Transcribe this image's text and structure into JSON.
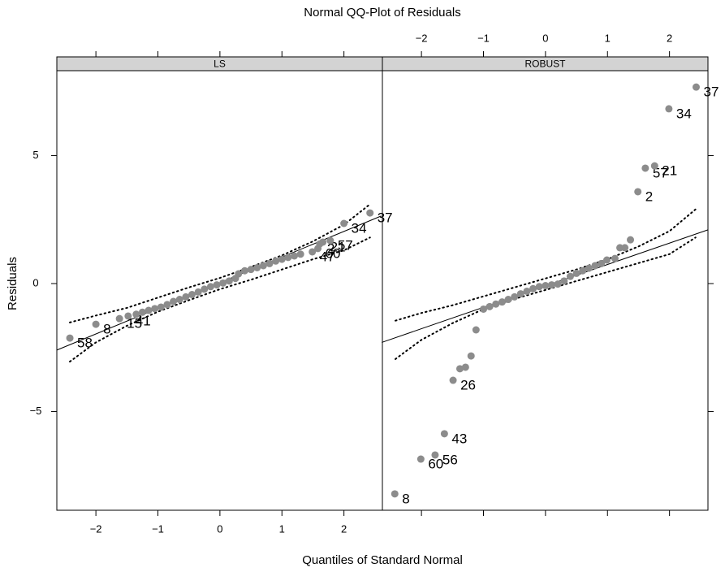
{
  "chart_data": {
    "type": "scatter",
    "title": "Normal QQ-Plot of Residuals",
    "xlabel": "Quantiles of Standard Normal",
    "ylabel": "Residuals",
    "xlim": [
      -2.63,
      2.62
    ],
    "ylim": [
      -8.86,
      8.32
    ],
    "xticks": [
      {
        "value": -2,
        "label": "−2"
      },
      {
        "value": -1,
        "label": "−1"
      },
      0,
      1,
      2
    ],
    "yticks": [
      {
        "value": -5,
        "label": "−5"
      },
      0,
      5
    ],
    "point_color": "#8c8c8c",
    "strip_color": "#d3d3d3",
    "panels": [
      {
        "name": "LS",
        "x": [
          -2.42,
          -2.0,
          -1.62,
          -1.48,
          -1.35,
          -1.25,
          -1.15,
          -1.05,
          -0.95,
          -0.85,
          -0.75,
          -0.65,
          -0.55,
          -0.45,
          -0.35,
          -0.25,
          -0.15,
          -0.05,
          0.05,
          0.15,
          0.25,
          0.3,
          0.4,
          0.5,
          0.6,
          0.7,
          0.8,
          0.9,
          1.0,
          1.1,
          1.2,
          1.3,
          1.49,
          1.58,
          1.61,
          1.66,
          1.78,
          2.0,
          2.42
        ],
        "values": [
          -2.13,
          -1.59,
          -1.37,
          -1.27,
          -1.2,
          -1.12,
          -1.05,
          -0.98,
          -0.92,
          -0.82,
          -0.7,
          -0.62,
          -0.52,
          -0.43,
          -0.33,
          -0.22,
          -0.12,
          -0.05,
          0.02,
          0.1,
          0.2,
          0.38,
          0.5,
          0.55,
          0.62,
          0.7,
          0.78,
          0.88,
          0.95,
          1.02,
          1.08,
          1.15,
          1.24,
          1.37,
          1.55,
          1.62,
          1.68,
          2.35,
          2.76
        ],
        "point_labels": [
          "58",
          "8",
          "15",
          "41",
          null,
          null,
          null,
          null,
          null,
          null,
          null,
          null,
          null,
          null,
          null,
          null,
          null,
          null,
          null,
          null,
          null,
          null,
          null,
          null,
          null,
          null,
          null,
          null,
          null,
          null,
          null,
          null,
          "47",
          "60",
          "2",
          "21",
          "57",
          "34",
          "37"
        ],
        "ref_x": [
          -2.63,
          2.6
        ],
        "ref_y": [
          -2.6,
          2.64
        ],
        "envelope_x": [
          -2.42,
          -2,
          -1.5,
          -1,
          -0.5,
          0,
          0.5,
          1,
          1.5,
          2,
          2.42
        ],
        "envelope_upper": [
          -1.52,
          -1.25,
          -0.95,
          -0.55,
          -0.15,
          0.22,
          0.65,
          1.1,
          1.65,
          2.3,
          3.1
        ],
        "envelope_lower": [
          -3.05,
          -2.3,
          -1.65,
          -1.1,
          -0.65,
          -0.22,
          0.15,
          0.55,
          0.95,
          1.3,
          1.8
        ]
      },
      {
        "name": "ROBUST",
        "x": [
          -2.43,
          -2.01,
          -1.78,
          -1.63,
          -1.49,
          -1.38,
          -1.29,
          -1.2,
          -1.12,
          -1.0,
          -0.9,
          -0.8,
          -0.7,
          -0.6,
          -0.5,
          -0.4,
          -0.3,
          -0.2,
          -0.1,
          0.0,
          0.1,
          0.2,
          0.3,
          0.4,
          0.5,
          0.6,
          0.7,
          0.8,
          0.9,
          0.99,
          1.12,
          1.2,
          1.28,
          1.37,
          1.49,
          1.61,
          1.76,
          1.99,
          2.43
        ],
        "values": [
          -8.22,
          -6.86,
          -6.7,
          -5.87,
          -3.78,
          -3.33,
          -3.27,
          -2.83,
          -1.81,
          -1.0,
          -0.9,
          -0.8,
          -0.72,
          -0.62,
          -0.52,
          -0.4,
          -0.3,
          -0.2,
          -0.12,
          -0.08,
          -0.05,
          -0.02,
          0.1,
          0.28,
          0.4,
          0.5,
          0.6,
          0.7,
          0.78,
          0.92,
          0.98,
          1.4,
          1.4,
          1.71,
          3.59,
          4.51,
          4.6,
          6.83,
          7.68
        ],
        "point_labels": [
          "8",
          "60",
          "56",
          "43",
          "26",
          null,
          null,
          null,
          null,
          null,
          null,
          null,
          null,
          null,
          null,
          null,
          null,
          null,
          null,
          null,
          null,
          null,
          null,
          null,
          null,
          null,
          null,
          null,
          null,
          null,
          null,
          null,
          null,
          null,
          "2",
          "57",
          "21",
          "34",
          "37"
        ],
        "ref_x": [
          -2.64,
          2.62
        ],
        "ref_y": [
          -2.3,
          2.1
        ],
        "envelope_x": [
          -2.42,
          -2,
          -1.5,
          -1,
          -0.5,
          0,
          0.5,
          1,
          1.5,
          2,
          2.42
        ],
        "envelope_upper": [
          -1.45,
          -1.15,
          -0.85,
          -0.5,
          -0.15,
          0.2,
          0.55,
          0.95,
          1.45,
          2.05,
          2.9
        ],
        "envelope_lower": [
          -2.95,
          -2.2,
          -1.55,
          -1.0,
          -0.6,
          -0.25,
          0.1,
          0.45,
          0.8,
          1.15,
          1.8
        ]
      }
    ]
  }
}
